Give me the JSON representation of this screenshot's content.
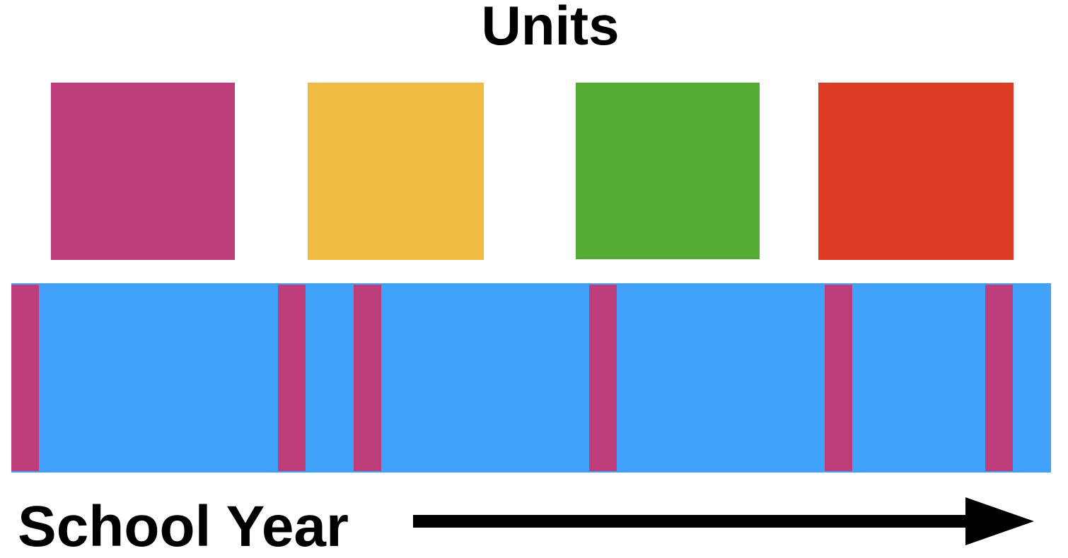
{
  "title": "Units",
  "axis_label": "School Year",
  "units": [
    {
      "color": "#BC3D7A"
    },
    {
      "color": "#F0BB42"
    },
    {
      "color": "#55AC34"
    },
    {
      "color": "#DC3C26"
    }
  ],
  "timeline": {
    "color": "#40A2F8",
    "marker_color": "#BC3D7A",
    "marker_count": 6
  },
  "arrow_color": "#000000"
}
